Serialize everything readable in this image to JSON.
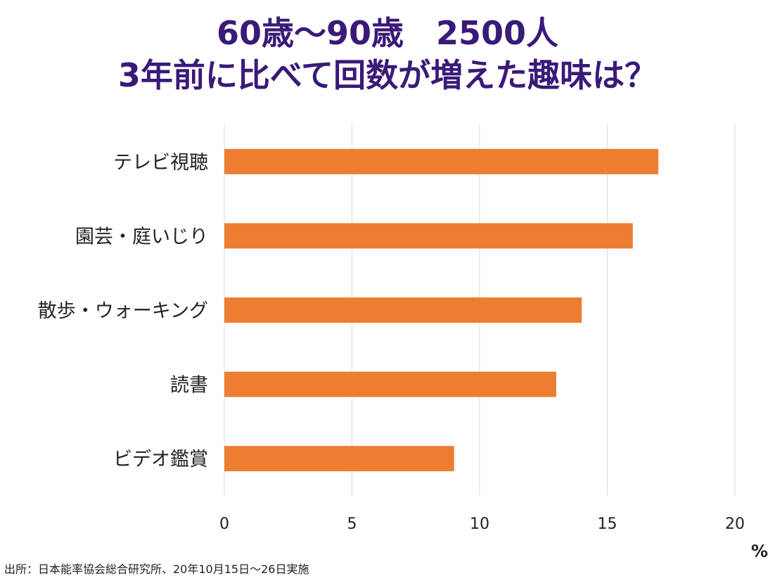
{
  "title_line1": "60歳〜90歳　2500人",
  "title_line2": "3年前に比べて回数が増えた趣味は？",
  "source": "出所：日本能率協会総合研究所、20年10月15日〜26日実施",
  "colors": {
    "bar": "#ed7d31",
    "title": "#3a1a78",
    "grid": "#d9d9d9"
  },
  "chart_data": {
    "type": "bar",
    "orientation": "horizontal",
    "categories": [
      "テレビ視聴",
      "園芸・庭いじり",
      "散歩・ウォーキング",
      "読書",
      "ビデオ鑑賞"
    ],
    "values": [
      17,
      16,
      14,
      13,
      9
    ],
    "xlim": [
      0,
      20
    ],
    "xticks": [
      0,
      5,
      10,
      15,
      20
    ],
    "xlabel": "%",
    "grid": true
  }
}
